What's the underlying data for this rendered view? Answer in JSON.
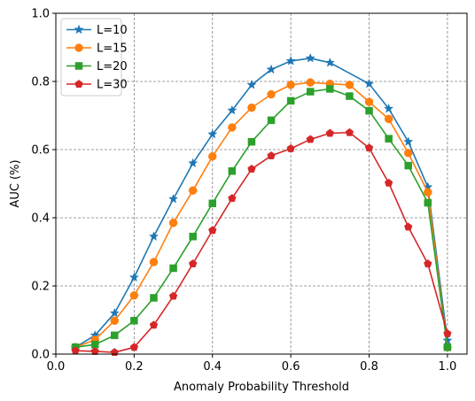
{
  "chart_data": {
    "type": "line",
    "xlabel": "Anomaly Probability Threshold",
    "ylabel": "AUC (%)",
    "xlim": [
      0.0,
      1.05
    ],
    "ylim": [
      0.0,
      1.0
    ],
    "xticks": [
      "0.0",
      "0.2",
      "0.4",
      "0.6",
      "0.8",
      "1.0"
    ],
    "yticks": [
      "0.0",
      "0.2",
      "0.4",
      "0.6",
      "0.8",
      "1.0"
    ],
    "grid": "dashed",
    "legend_position": "top-left",
    "x": [
      0.05,
      0.1,
      0.15,
      0.2,
      0.25,
      0.3,
      0.35,
      0.4,
      0.45,
      0.5,
      0.55,
      0.6,
      0.65,
      0.7,
      0.75,
      0.8,
      0.85,
      0.9,
      0.95,
      1.0
    ],
    "series": [
      {
        "name": "L=10",
        "color": "#1f77b4",
        "marker": "star",
        "values": [
          0.02,
          0.055,
          0.12,
          0.225,
          0.345,
          0.455,
          0.56,
          0.645,
          0.715,
          0.79,
          0.835,
          0.86,
          0.868,
          0.855,
          null,
          0.793,
          0.72,
          0.623,
          0.49,
          0.04
        ]
      },
      {
        "name": "L=15",
        "color": "#ff7f0e",
        "marker": "circle",
        "values": [
          0.02,
          0.042,
          0.098,
          0.172,
          0.27,
          0.385,
          0.48,
          0.58,
          0.665,
          0.723,
          0.762,
          0.79,
          0.797,
          0.793,
          0.79,
          0.74,
          0.69,
          0.59,
          0.475,
          0.02
        ]
      },
      {
        "name": "L=20",
        "color": "#2ca02c",
        "marker": "square",
        "values": [
          0.02,
          0.028,
          0.055,
          0.098,
          0.165,
          0.252,
          0.345,
          0.442,
          0.537,
          0.623,
          0.686,
          0.743,
          0.77,
          0.778,
          0.757,
          0.714,
          0.632,
          0.553,
          0.444,
          0.02
        ]
      },
      {
        "name": "L=30",
        "color": "#d62728",
        "marker": "pentagon",
        "values": [
          0.01,
          0.008,
          0.005,
          0.02,
          0.085,
          0.17,
          0.265,
          0.363,
          0.457,
          0.543,
          0.582,
          0.603,
          0.63,
          0.648,
          0.65,
          0.605,
          0.502,
          0.373,
          0.265,
          0.06
        ]
      }
    ]
  }
}
